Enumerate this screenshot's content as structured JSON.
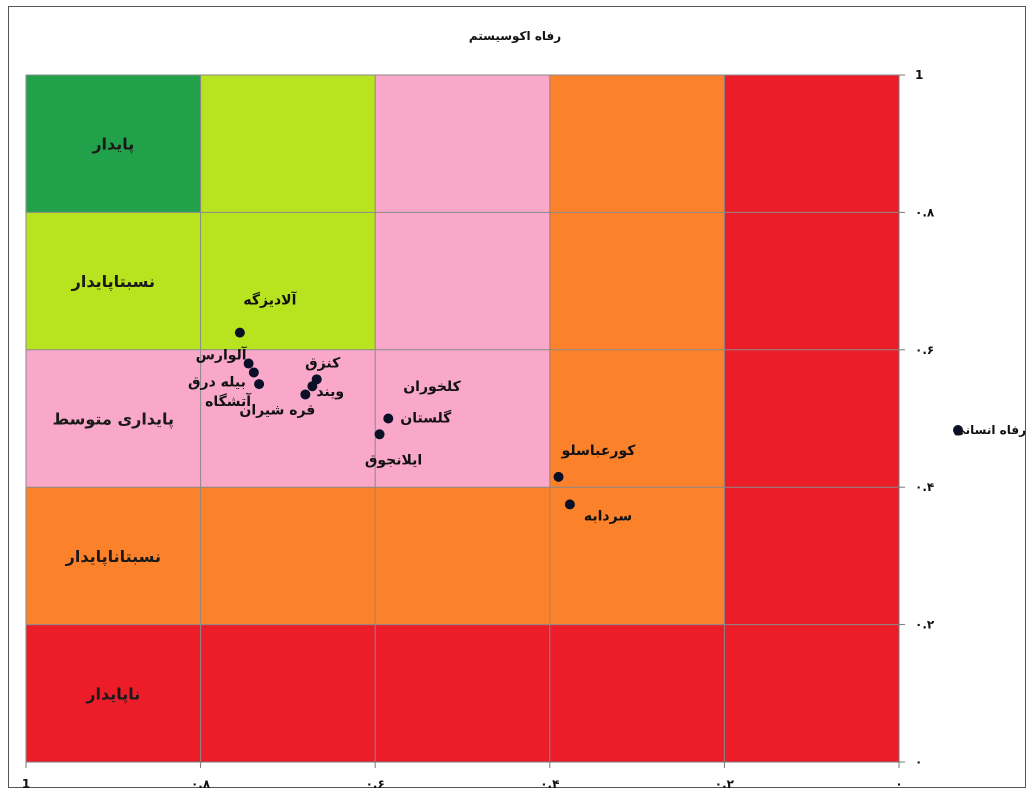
{
  "chart_data": {
    "type": "scatter",
    "title": "رفاه اکوسیستم",
    "xlim": [
      1,
      0
    ],
    "ylim": [
      0,
      1
    ],
    "x_tick_labels": [
      "1",
      "۰.۸",
      "۰.۶",
      "۰.۴",
      "۰.۲",
      "۰"
    ],
    "y_tick_labels": [
      "۰",
      "۰.۲",
      "۰.۴",
      "۰.۶",
      "۰.۸",
      "1"
    ],
    "grid": true,
    "series": [
      {
        "name": "رفاه انسانی",
        "color": "#0b1028",
        "points": [
          {
            "label": "آلادیزگه",
            "x": 0.755,
            "y": 0.625
          },
          {
            "label": "آلوارس",
            "x": 0.745,
            "y": 0.58
          },
          {
            "label": "بیله درق",
            "x": 0.739,
            "y": 0.567
          },
          {
            "label": "آتشگاه",
            "x": 0.733,
            "y": 0.55
          },
          {
            "label": "کنزق",
            "x": 0.667,
            "y": 0.557
          },
          {
            "label": "ویند",
            "x": 0.672,
            "y": 0.547
          },
          {
            "label": "قره شیران",
            "x": 0.68,
            "y": 0.535
          },
          {
            "label": "گلستان",
            "x": 0.585,
            "y": 0.5
          },
          {
            "label": "ایلانجوق",
            "x": 0.595,
            "y": 0.477
          },
          {
            "label": "کورعباسلو",
            "x": 0.39,
            "y": 0.415
          },
          {
            "label": "سردابه",
            "x": 0.377,
            "y": 0.375
          }
        ]
      }
    ],
    "zones": [
      {
        "label": "پایدار",
        "color": "#21a24a"
      },
      {
        "label": "نسبتاپایدار",
        "color": "#b8e31f"
      },
      {
        "label": "پایداری متوسط",
        "color": "#f9a8c9"
      },
      {
        "label": "نسبتاناپایدار",
        "color": "#fb822a"
      },
      {
        "label": "ناپایدار",
        "color": "#ec1c28"
      }
    ],
    "legend_position": "right",
    "extra_label": "کلخوران"
  }
}
